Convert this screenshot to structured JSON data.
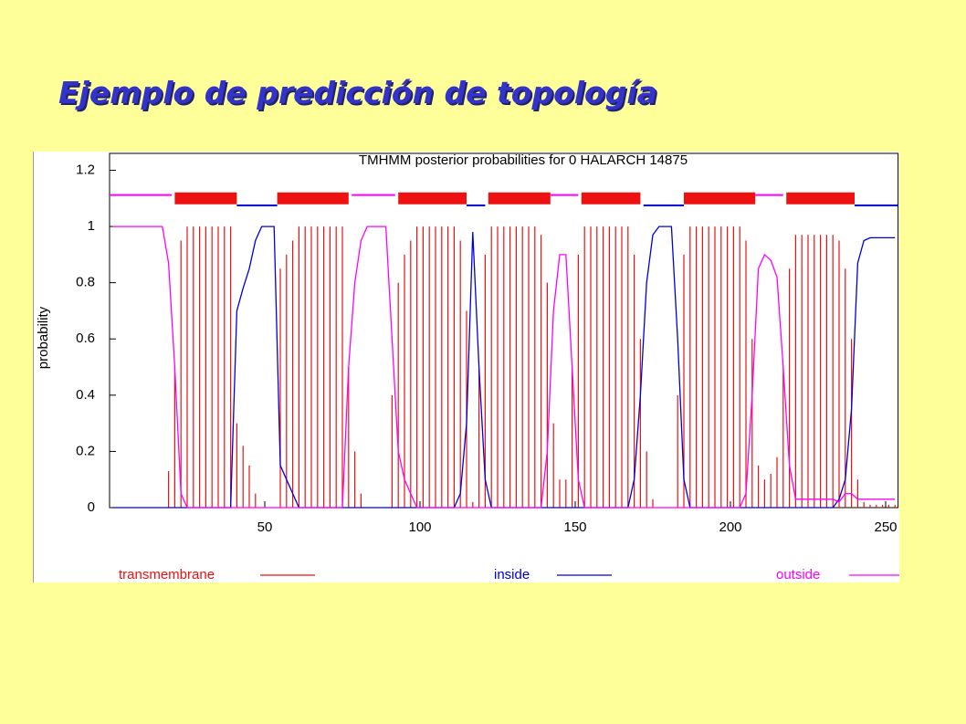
{
  "slide_title": "Ejemplo de predicción de topología",
  "chart_data": {
    "type": "line",
    "title": "TMHMM posterior probabilities for 0  HALARCH  14875",
    "y_label": "probability",
    "xlim": [
      0,
      254
    ],
    "xticks": [
      50,
      100,
      150,
      200,
      250
    ],
    "ylim": [
      0,
      1.26
    ],
    "yticks": [
      0,
      0.2,
      0.4,
      0.6,
      0.8,
      1,
      1.2
    ],
    "x": [
      1,
      3,
      5,
      7,
      9,
      11,
      13,
      15,
      17,
      19,
      21,
      23,
      25,
      27,
      29,
      31,
      33,
      35,
      37,
      39,
      41,
      43,
      45,
      47,
      49,
      51,
      53,
      55,
      57,
      59,
      61,
      63,
      65,
      67,
      69,
      71,
      73,
      75,
      77,
      79,
      81,
      83,
      85,
      87,
      89,
      91,
      93,
      95,
      97,
      99,
      101,
      103,
      105,
      107,
      109,
      111,
      113,
      115,
      117,
      119,
      121,
      123,
      125,
      127,
      129,
      131,
      133,
      135,
      137,
      139,
      141,
      143,
      145,
      147,
      149,
      151,
      153,
      155,
      157,
      159,
      161,
      163,
      165,
      167,
      169,
      171,
      173,
      175,
      177,
      179,
      181,
      183,
      185,
      187,
      189,
      191,
      193,
      195,
      197,
      199,
      201,
      203,
      205,
      207,
      209,
      211,
      213,
      215,
      217,
      219,
      221,
      223,
      225,
      227,
      229,
      231,
      233,
      235,
      237,
      239,
      241,
      243,
      245,
      247,
      249,
      251,
      253
    ],
    "series": [
      {
        "name": "transmembrane",
        "color": "#ee1111",
        "style": "impulses",
        "segments": [
          [
            21,
            41
          ],
          [
            54,
            77
          ],
          [
            93,
            115
          ],
          [
            122,
            142
          ],
          [
            152,
            171
          ],
          [
            185,
            208
          ],
          [
            218,
            240
          ]
        ],
        "values": [
          0,
          0,
          0,
          0,
          0,
          0,
          0,
          0,
          0,
          0.13,
          0.5,
          0.95,
          1,
          1,
          1,
          1,
          1,
          1,
          1,
          1,
          0.3,
          0.22,
          0.15,
          0.05,
          0,
          0,
          0,
          0.85,
          0.9,
          0.95,
          1,
          1,
          1,
          1,
          1,
          1,
          1,
          1,
          0.5,
          0.2,
          0.05,
          0,
          0,
          0,
          0,
          0.4,
          0.8,
          0.9,
          0.95,
          1,
          1,
          1,
          1,
          1,
          1,
          1,
          0.95,
          0.7,
          0.02,
          0.5,
          0.9,
          1,
          1,
          1,
          1,
          1,
          1,
          1,
          1,
          0.97,
          0.8,
          0.3,
          0.1,
          0.1,
          0.5,
          0.9,
          1,
          1,
          1,
          1,
          1,
          1,
          1,
          1,
          0.9,
          0.6,
          0.2,
          0.03,
          0,
          0,
          0,
          0.4,
          0.9,
          1,
          1,
          1,
          1,
          1,
          1,
          1,
          1,
          1,
          0.95,
          0.6,
          0.15,
          0.1,
          0.12,
          0.18,
          0.5,
          0.85,
          0.97,
          0.97,
          0.97,
          0.97,
          0.97,
          0.97,
          0.97,
          0.95,
          0.85,
          0.6,
          0.1,
          0.02,
          0.01,
          0.01,
          0.01,
          0.01,
          0.01
        ]
      },
      {
        "name": "inside",
        "color": "#0000dd",
        "style": "line",
        "segments": [
          [
            41,
            54
          ],
          [
            115,
            121
          ],
          [
            172,
            185
          ],
          [
            240,
            254
          ]
        ],
        "values": [
          0,
          0,
          0,
          0,
          0,
          0,
          0,
          0,
          0,
          0,
          0,
          0,
          0,
          0,
          0,
          0,
          0,
          0,
          0,
          0,
          0.7,
          0.78,
          0.85,
          0.95,
          1,
          1,
          1,
          0.15,
          0.1,
          0.05,
          0,
          0,
          0,
          0,
          0,
          0,
          0,
          0,
          0,
          0,
          0,
          0,
          0,
          0,
          0,
          0,
          0,
          0,
          0,
          0,
          0,
          0,
          0,
          0,
          0,
          0,
          0.05,
          0.3,
          0.98,
          0.5,
          0.1,
          0,
          0,
          0,
          0,
          0,
          0,
          0,
          0,
          0,
          0,
          0,
          0,
          0,
          0,
          0,
          0,
          0,
          0,
          0,
          0,
          0,
          0,
          0,
          0.1,
          0.4,
          0.8,
          0.97,
          1,
          1,
          1,
          0.6,
          0.1,
          0,
          0,
          0,
          0,
          0,
          0,
          0,
          0,
          0,
          0,
          0,
          0,
          0,
          0,
          0,
          0,
          0,
          0,
          0,
          0,
          0,
          0,
          0,
          0,
          0.03,
          0.1,
          0.35,
          0.87,
          0.95,
          0.96,
          0.96,
          0.96,
          0.96,
          0.96
        ]
      },
      {
        "name": "outside",
        "color": "#ff00ff",
        "style": "line",
        "segments": [
          [
            0,
            20
          ],
          [
            78,
            92
          ],
          [
            142,
            151
          ],
          [
            208,
            217
          ]
        ],
        "values": [
          1,
          1,
          1,
          1,
          1,
          1,
          1,
          1,
          1,
          0.87,
          0.5,
          0.05,
          0,
          0,
          0,
          0,
          0,
          0,
          0,
          0,
          0,
          0,
          0,
          0,
          0,
          0,
          0,
          0,
          0,
          0,
          0,
          0,
          0,
          0,
          0,
          0,
          0,
          0,
          0.5,
          0.8,
          0.95,
          1,
          1,
          1,
          1,
          0.6,
          0.2,
          0.1,
          0.05,
          0,
          0,
          0,
          0,
          0,
          0,
          0,
          0,
          0,
          0,
          0,
          0,
          0,
          0,
          0,
          0,
          0,
          0,
          0,
          0,
          0,
          0.2,
          0.7,
          0.9,
          0.9,
          0.5,
          0.1,
          0,
          0,
          0,
          0,
          0,
          0,
          0,
          0,
          0,
          0,
          0,
          0,
          0,
          0,
          0,
          0,
          0,
          0,
          0,
          0,
          0,
          0,
          0,
          0,
          0,
          0,
          0.05,
          0.4,
          0.85,
          0.9,
          0.88,
          0.82,
          0.5,
          0.15,
          0.03,
          0.03,
          0.03,
          0.03,
          0.03,
          0.03,
          0.03,
          0.02,
          0.05,
          0.05,
          0.03,
          0.03,
          0.03,
          0.03,
          0.03,
          0.03,
          0.03
        ]
      }
    ]
  }
}
